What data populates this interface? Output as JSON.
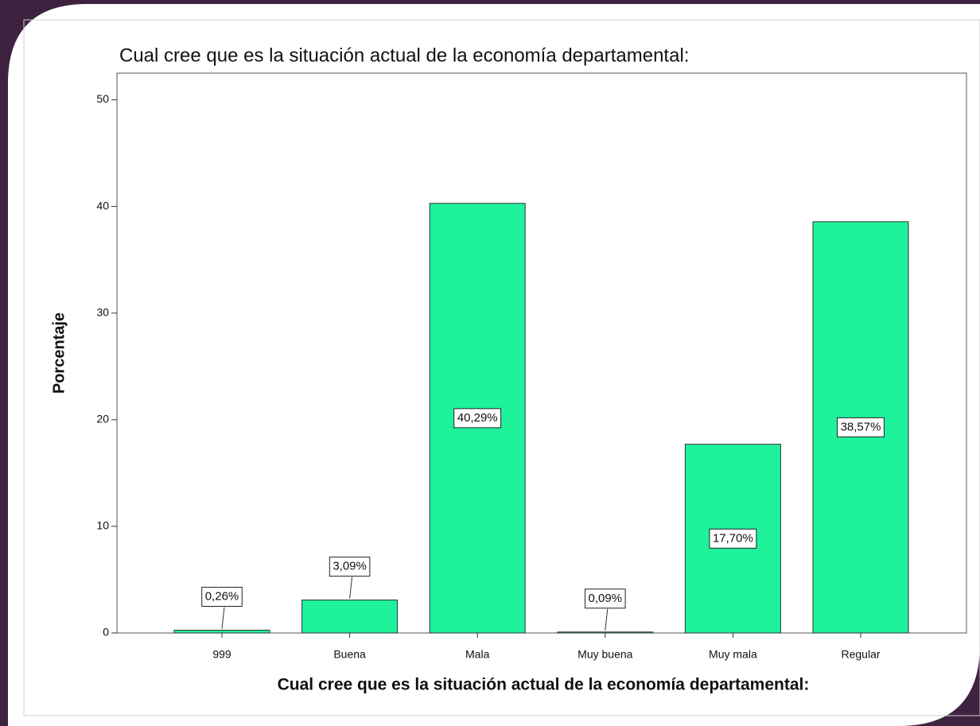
{
  "chart_data": {
    "type": "bar",
    "title": "Cual cree que es la situación actual de la economía departamental:",
    "x_label": "Cual cree que es la situación actual de la economía departamental:",
    "y_label": "Porcentaje",
    "categories": [
      "999",
      "Buena",
      "Mala",
      "Muy buena",
      "Muy mala",
      "Regular"
    ],
    "values": [
      0.26,
      3.09,
      40.29,
      0.09,
      17.7,
      38.57
    ],
    "value_labels": [
      "0,26%",
      "3,09%",
      "40,29%",
      "0,09%",
      "17,70%",
      "38,57%"
    ],
    "color": "#1ef29a",
    "ylim": [
      0,
      52.5
    ],
    "yticks": [
      0,
      10,
      20,
      30,
      40,
      50
    ],
    "grid": false
  }
}
